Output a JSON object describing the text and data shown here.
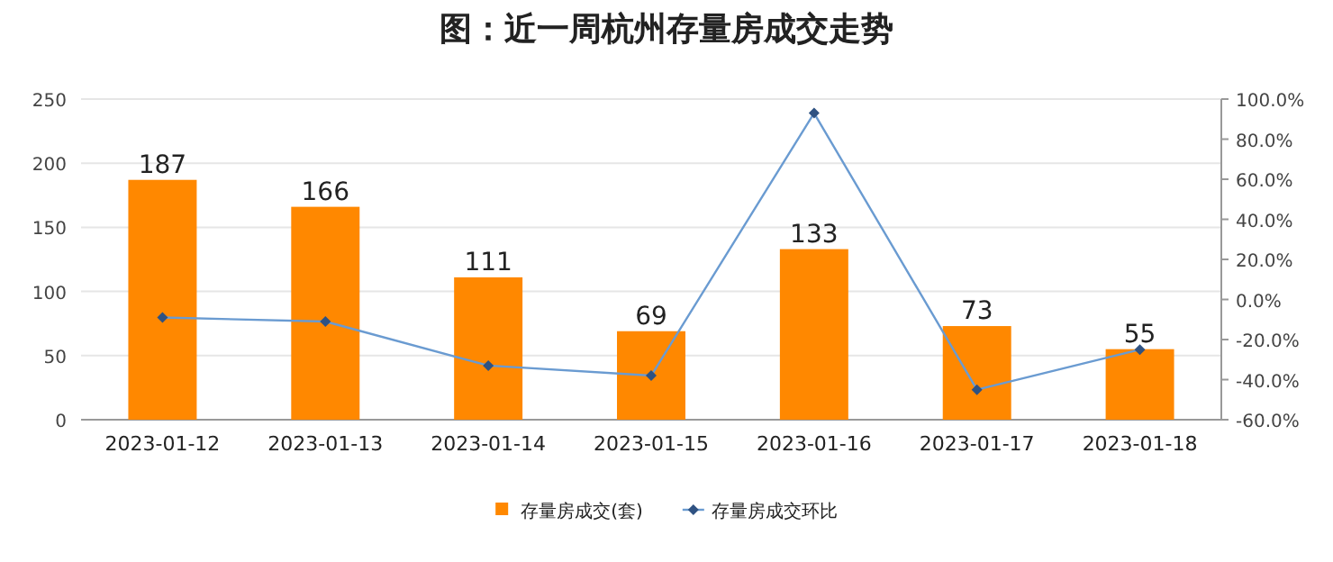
{
  "chart_data": {
    "type": "bar",
    "title": "图：近一周杭州存量房成交走势",
    "categories": [
      "2023-01-12",
      "2023-01-13",
      "2023-01-14",
      "2023-01-15",
      "2023-01-16",
      "2023-01-17",
      "2023-01-18"
    ],
    "series": [
      {
        "name": "存量房成交(套)",
        "color": "#ff8800",
        "values": [
          187,
          166,
          111,
          69,
          133,
          73,
          55
        ],
        "value_labels": [
          "187",
          "166",
          "111",
          "69",
          "133",
          "73",
          "55"
        ]
      },
      {
        "name": "存量房成交环比",
        "type": "line",
        "axis": "y2",
        "color": "#6a9bd1",
        "marker": "diamond",
        "values": [
          -9,
          -11,
          -33,
          -38,
          93,
          -45,
          -25
        ]
      }
    ],
    "ylim": [
      0,
      250
    ],
    "yticks": [
      0,
      50,
      100,
      150,
      200,
      250
    ],
    "y2lim": [
      -60,
      100
    ],
    "y2ticks": [
      {
        "value": -60,
        "label": "-60.0%"
      },
      {
        "value": -40,
        "label": "-40.0%"
      },
      {
        "value": -20,
        "label": "-20.0%"
      },
      {
        "value": 0,
        "label": "0.0%"
      },
      {
        "value": 20,
        "label": "20.0%"
      },
      {
        "value": 40,
        "label": "40.0%"
      },
      {
        "value": 60,
        "label": "60.0%"
      },
      {
        "value": 80,
        "label": "80.0%"
      },
      {
        "value": 100,
        "label": "100.0%"
      }
    ],
    "grid": "y",
    "legend": "bottom"
  }
}
